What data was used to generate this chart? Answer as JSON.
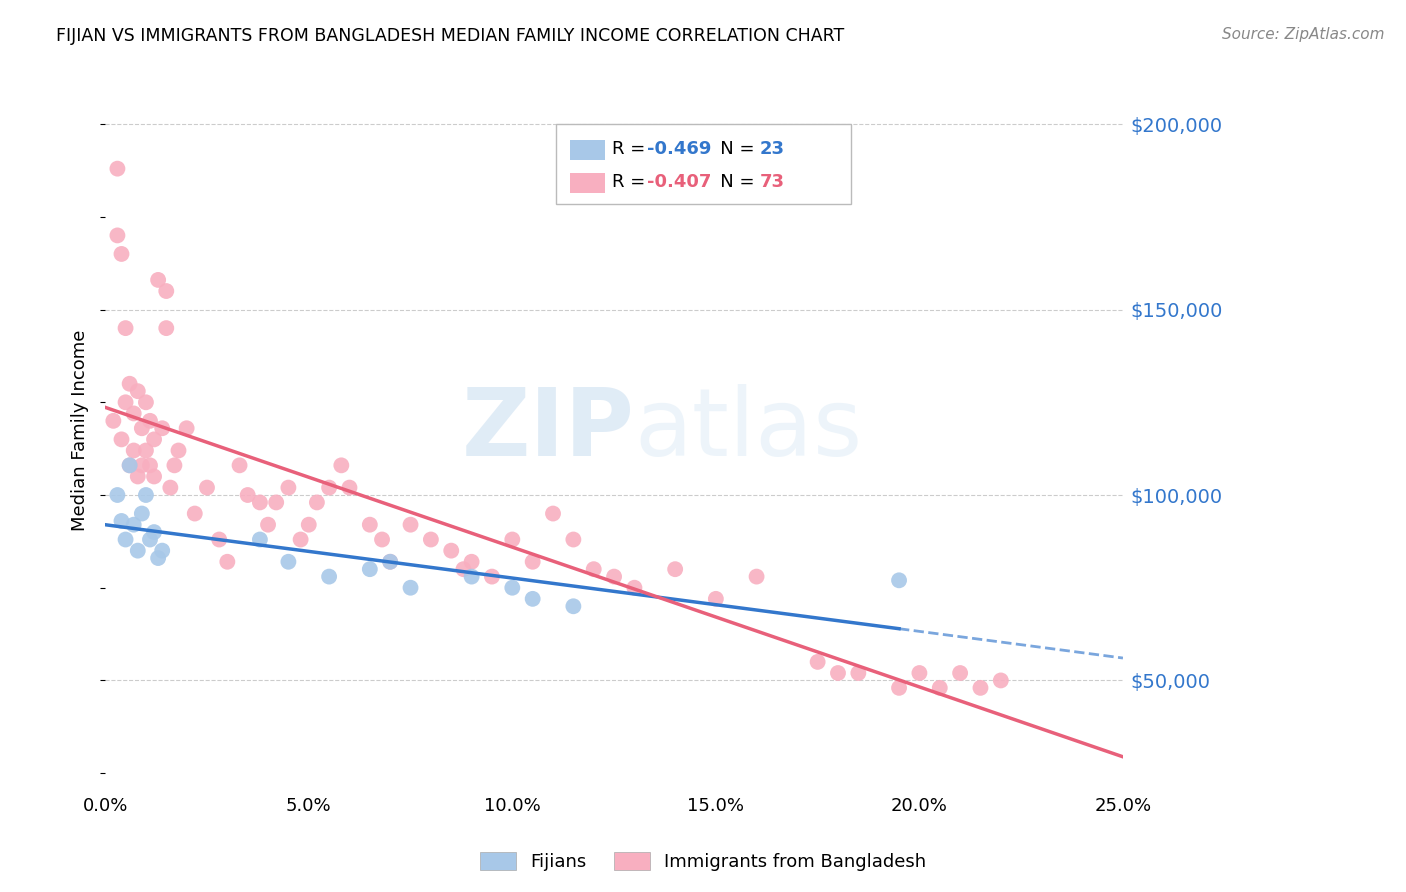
{
  "title": "FIJIAN VS IMMIGRANTS FROM BANGLADESH MEDIAN FAMILY INCOME CORRELATION CHART",
  "source": "Source: ZipAtlas.com",
  "ylabel_label": "Median Family Income",
  "x_min": 0.0,
  "x_max": 0.25,
  "y_min": 20000,
  "y_max": 215000,
  "yticks": [
    50000,
    100000,
    150000,
    200000
  ],
  "xticks": [
    0.0,
    0.05,
    0.1,
    0.15,
    0.2,
    0.25
  ],
  "xtick_labels": [
    "0.0%",
    "5.0%",
    "10.0%",
    "15.0%",
    "20.0%",
    "25.0%"
  ],
  "fijian_R": -0.469,
  "fijian_N": 23,
  "bangladesh_R": -0.407,
  "bangladesh_N": 73,
  "fijian_color": "#a8c8e8",
  "bangladesh_color": "#f8afc0",
  "fijian_line_color": "#3377cc",
  "bangladesh_line_color": "#e8607a",
  "watermark_zip": "ZIP",
  "watermark_atlas": "atlas",
  "legend_label_fijian": "Fijians",
  "legend_label_bangladesh": "Immigrants from Bangladesh",
  "fijian_x": [
    0.003,
    0.004,
    0.005,
    0.006,
    0.007,
    0.008,
    0.009,
    0.01,
    0.011,
    0.012,
    0.013,
    0.014,
    0.038,
    0.045,
    0.055,
    0.065,
    0.07,
    0.075,
    0.09,
    0.1,
    0.105,
    0.115,
    0.195
  ],
  "fijian_y": [
    100000,
    93000,
    88000,
    108000,
    92000,
    85000,
    95000,
    100000,
    88000,
    90000,
    83000,
    85000,
    88000,
    82000,
    78000,
    80000,
    82000,
    75000,
    78000,
    75000,
    72000,
    70000,
    77000
  ],
  "bangladesh_x": [
    0.002,
    0.003,
    0.003,
    0.004,
    0.004,
    0.005,
    0.005,
    0.006,
    0.006,
    0.007,
    0.007,
    0.008,
    0.008,
    0.009,
    0.009,
    0.01,
    0.01,
    0.011,
    0.011,
    0.012,
    0.012,
    0.013,
    0.014,
    0.015,
    0.015,
    0.016,
    0.017,
    0.018,
    0.02,
    0.022,
    0.025,
    0.028,
    0.03,
    0.033,
    0.035,
    0.038,
    0.04,
    0.042,
    0.045,
    0.048,
    0.05,
    0.052,
    0.055,
    0.058,
    0.06,
    0.065,
    0.068,
    0.07,
    0.075,
    0.08,
    0.085,
    0.088,
    0.09,
    0.095,
    0.1,
    0.105,
    0.11,
    0.115,
    0.12,
    0.125,
    0.13,
    0.14,
    0.15,
    0.16,
    0.175,
    0.18,
    0.185,
    0.195,
    0.2,
    0.205,
    0.21,
    0.215,
    0.22
  ],
  "bangladesh_y": [
    120000,
    188000,
    170000,
    165000,
    115000,
    145000,
    125000,
    130000,
    108000,
    122000,
    112000,
    128000,
    105000,
    118000,
    108000,
    125000,
    112000,
    108000,
    120000,
    105000,
    115000,
    158000,
    118000,
    145000,
    155000,
    102000,
    108000,
    112000,
    118000,
    95000,
    102000,
    88000,
    82000,
    108000,
    100000,
    98000,
    92000,
    98000,
    102000,
    88000,
    92000,
    98000,
    102000,
    108000,
    102000,
    92000,
    88000,
    82000,
    92000,
    88000,
    85000,
    80000,
    82000,
    78000,
    88000,
    82000,
    95000,
    88000,
    80000,
    78000,
    75000,
    80000,
    72000,
    78000,
    55000,
    52000,
    52000,
    48000,
    52000,
    48000,
    52000,
    48000,
    50000
  ]
}
